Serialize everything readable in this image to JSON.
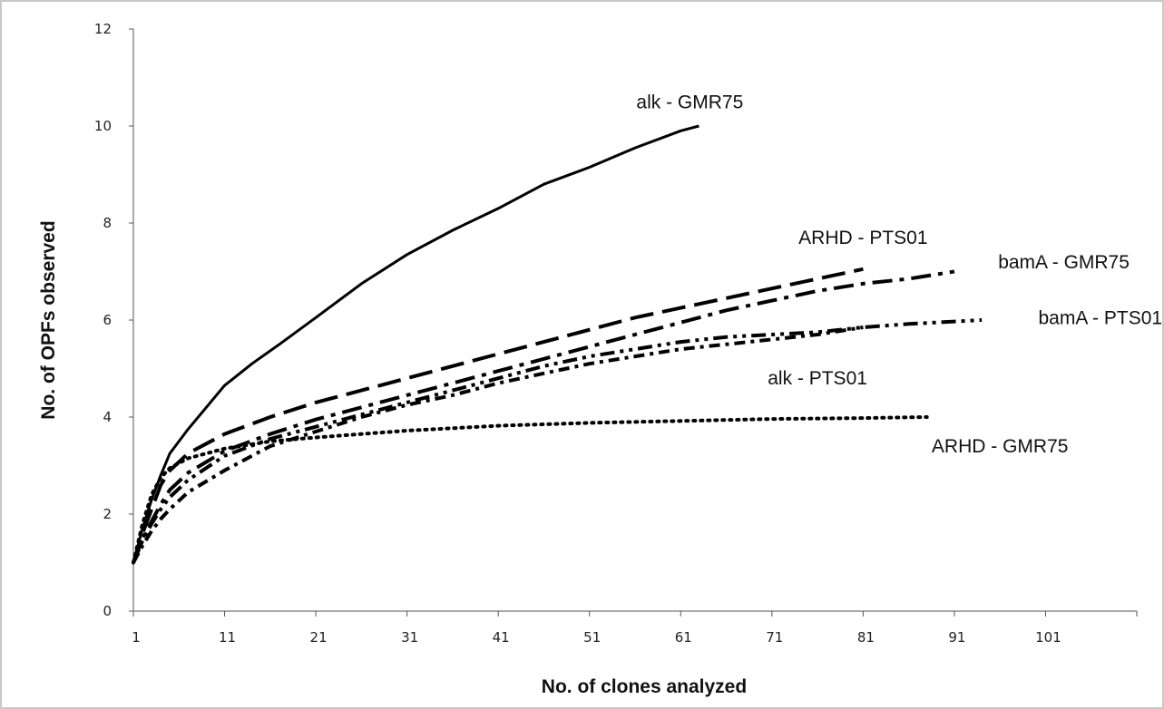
{
  "chart_data": {
    "type": "line",
    "title": "",
    "xlabel": "No. of clones analyzed",
    "ylabel": "No. of OPFs observed",
    "xlim": [
      1,
      111
    ],
    "ylim": [
      0,
      12
    ],
    "xticks": [
      1,
      11,
      21,
      31,
      41,
      51,
      61,
      71,
      81,
      91,
      101
    ],
    "yticks": [
      0,
      2,
      4,
      6,
      8,
      10,
      12
    ],
    "grid": false,
    "legend": "inline labels",
    "series": [
      {
        "name": "alk - GMR75",
        "style": "solid",
        "points": [
          [
            1,
            1
          ],
          [
            2,
            1.7
          ],
          [
            3,
            2.3
          ],
          [
            4,
            2.8
          ],
          [
            5,
            3.25
          ],
          [
            7,
            3.75
          ],
          [
            9,
            4.2
          ],
          [
            11,
            4.65
          ],
          [
            14,
            5.1
          ],
          [
            17,
            5.5
          ],
          [
            21,
            6.05
          ],
          [
            26,
            6.75
          ],
          [
            31,
            7.35
          ],
          [
            36,
            7.85
          ],
          [
            41,
            8.3
          ],
          [
            46,
            8.8
          ],
          [
            51,
            9.15
          ],
          [
            56,
            9.55
          ],
          [
            61,
            9.9
          ],
          [
            63,
            10
          ]
        ],
        "label": {
          "x": 62,
          "y": 10.5
        }
      },
      {
        "name": "ARHD - PTS01",
        "style": "longdash",
        "points": [
          [
            1,
            1
          ],
          [
            2,
            1.6
          ],
          [
            3,
            2.1
          ],
          [
            4,
            2.6
          ],
          [
            5,
            2.9
          ],
          [
            7,
            3.25
          ],
          [
            11,
            3.65
          ],
          [
            16,
            4
          ],
          [
            21,
            4.3
          ],
          [
            26,
            4.55
          ],
          [
            31,
            4.8
          ],
          [
            36,
            5.05
          ],
          [
            41,
            5.3
          ],
          [
            46,
            5.55
          ],
          [
            51,
            5.8
          ],
          [
            56,
            6.05
          ],
          [
            61,
            6.25
          ],
          [
            66,
            6.45
          ],
          [
            71,
            6.65
          ],
          [
            76,
            6.85
          ],
          [
            81,
            7.05
          ]
        ],
        "label": {
          "x": 81,
          "y": 7.7
        }
      },
      {
        "name": "bamA - GMR75",
        "style": "dashdot",
        "points": [
          [
            1,
            1
          ],
          [
            2,
            1.5
          ],
          [
            3,
            1.85
          ],
          [
            4,
            2.2
          ],
          [
            5,
            2.5
          ],
          [
            7,
            2.85
          ],
          [
            11,
            3.3
          ],
          [
            16,
            3.65
          ],
          [
            21,
            3.95
          ],
          [
            26,
            4.2
          ],
          [
            31,
            4.45
          ],
          [
            36,
            4.7
          ],
          [
            41,
            4.95
          ],
          [
            46,
            5.2
          ],
          [
            51,
            5.45
          ],
          [
            56,
            5.7
          ],
          [
            61,
            5.95
          ],
          [
            66,
            6.2
          ],
          [
            71,
            6.4
          ],
          [
            76,
            6.6
          ],
          [
            81,
            6.75
          ],
          [
            86,
            6.85
          ],
          [
            91,
            7
          ]
        ],
        "label": {
          "x": 103,
          "y": 7.2
        }
      },
      {
        "name": "bamA - PTS01",
        "style": "dashdotdot",
        "points": [
          [
            1,
            1
          ],
          [
            2,
            1.45
          ],
          [
            3,
            1.8
          ],
          [
            4,
            2.1
          ],
          [
            5,
            2.35
          ],
          [
            7,
            2.7
          ],
          [
            11,
            3.2
          ],
          [
            16,
            3.55
          ],
          [
            21,
            3.8
          ],
          [
            26,
            4.05
          ],
          [
            31,
            4.3
          ],
          [
            36,
            4.55
          ],
          [
            41,
            4.8
          ],
          [
            46,
            5.05
          ],
          [
            51,
            5.25
          ],
          [
            56,
            5.4
          ],
          [
            61,
            5.55
          ],
          [
            66,
            5.65
          ],
          [
            71,
            5.7
          ],
          [
            76,
            5.75
          ],
          [
            81,
            5.85
          ],
          [
            86,
            5.92
          ],
          [
            91,
            5.97
          ],
          [
            94,
            6
          ]
        ],
        "label": {
          "x": 107,
          "y": 6.05
        }
      },
      {
        "name": "alk - PTS01",
        "style": "dashdot-long",
        "points": [
          [
            1,
            1
          ],
          [
            2,
            1.35
          ],
          [
            3,
            1.65
          ],
          [
            4,
            1.9
          ],
          [
            5,
            2.1
          ],
          [
            7,
            2.45
          ],
          [
            11,
            2.9
          ],
          [
            16,
            3.4
          ],
          [
            21,
            3.7
          ],
          [
            26,
            4
          ],
          [
            31,
            4.25
          ],
          [
            36,
            4.45
          ],
          [
            41,
            4.7
          ],
          [
            46,
            4.9
          ],
          [
            51,
            5.1
          ],
          [
            56,
            5.25
          ],
          [
            61,
            5.4
          ],
          [
            66,
            5.5
          ],
          [
            71,
            5.6
          ],
          [
            76,
            5.7
          ],
          [
            81,
            5.85
          ]
        ],
        "label": {
          "x": 76,
          "y": 4.8
        }
      },
      {
        "name": "ARHD - GMR75",
        "style": "dotted",
        "points": [
          [
            1,
            1
          ],
          [
            2,
            1.8
          ],
          [
            3,
            2.4
          ],
          [
            4,
            2.75
          ],
          [
            5,
            2.95
          ],
          [
            7,
            3.15
          ],
          [
            11,
            3.35
          ],
          [
            16,
            3.5
          ],
          [
            21,
            3.58
          ],
          [
            26,
            3.65
          ],
          [
            31,
            3.72
          ],
          [
            41,
            3.82
          ],
          [
            51,
            3.88
          ],
          [
            61,
            3.92
          ],
          [
            71,
            3.96
          ],
          [
            81,
            3.98
          ],
          [
            88,
            4
          ]
        ],
        "label": {
          "x": 96,
          "y": 3.4
        }
      }
    ]
  }
}
